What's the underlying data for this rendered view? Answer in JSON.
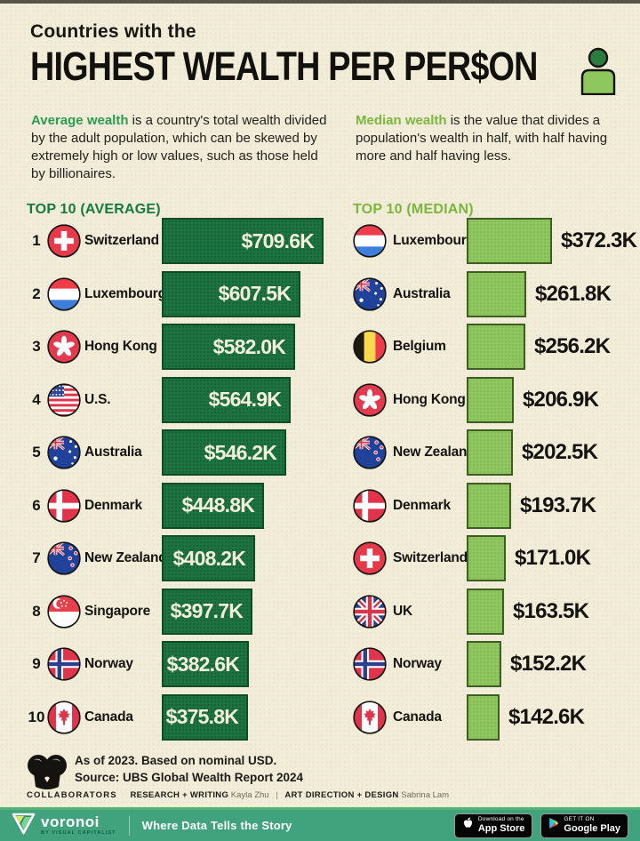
{
  "page": {
    "title_line1": "Countries with the",
    "title_line2": "HIGHEST WEALTH PER PER$ON"
  },
  "intro": {
    "average": {
      "highlight": "Average wealth",
      "text": " is a country's total wealth divided by the adult population, which can be skewed by extremely high or low values, such as those held by billionaires."
    },
    "median": {
      "highlight": "Median wealth",
      "text": " is the value that divides a population's wealth in half, with half having more and half having less."
    }
  },
  "chart_data": [
    {
      "type": "bar",
      "orientation": "horizontal",
      "title": "TOP 10 (AVERAGE)",
      "unit": "USD thousands per adult, nominal, 2023",
      "value_position": "inside",
      "bar_color": "#1d7340",
      "categories": [
        "Switzerland",
        "Luxembourg",
        "Hong Kong",
        "U.S.",
        "Australia",
        "Denmark",
        "New Zealand",
        "Singapore",
        "Norway",
        "Canada"
      ],
      "ranks": [
        1,
        2,
        3,
        4,
        5,
        6,
        7,
        8,
        9,
        10
      ],
      "values": [
        709.6,
        607.5,
        582.0,
        564.9,
        546.2,
        448.8,
        408.2,
        397.7,
        382.6,
        375.8
      ],
      "labels": [
        "$709.6K",
        "$607.5K",
        "$582.0K",
        "$564.9K",
        "$546.2K",
        "$448.8K",
        "$408.2K",
        "$397.7K",
        "$382.6K",
        "$375.8K"
      ],
      "flags": [
        "ch",
        "lu",
        "hk",
        "us",
        "au",
        "dk",
        "nz",
        "sg",
        "no",
        "ca"
      ],
      "xlim": [
        0,
        760
      ]
    },
    {
      "type": "bar",
      "orientation": "horizontal",
      "title": "TOP 10 (MEDIAN)",
      "unit": "USD thousands per adult, nominal, 2023",
      "value_position": "outside",
      "bar_color": "#8fc75f",
      "categories": [
        "Luxembourg",
        "Australia",
        "Belgium",
        "Hong Kong",
        "New Zealand",
        "Denmark",
        "Switzerland",
        "UK",
        "Norway",
        "Canada"
      ],
      "values": [
        372.3,
        261.8,
        256.2,
        206.9,
        202.5,
        193.7,
        171.0,
        163.5,
        152.2,
        142.6
      ],
      "labels": [
        "$372.3K",
        "$261.8K",
        "$256.2K",
        "$206.9K",
        "$202.5K",
        "$193.7K",
        "$171.0K",
        "$163.5K",
        "$152.2K",
        "$142.6K"
      ],
      "flags": [
        "lu",
        "au",
        "be",
        "hk",
        "nz",
        "dk",
        "ch",
        "uk",
        "no",
        "ca"
      ],
      "xlim": [
        0,
        760
      ]
    }
  ],
  "footer": {
    "note_line1": "As of 2023. Based on nominal USD.",
    "note_line2": "Source: UBS Global Wealth Report 2024",
    "collaborators_label": "COLLABORATORS",
    "role1": "RESEARCH + WRITING",
    "name1": "Kayla Zhu",
    "separator": "|",
    "role2": "ART DIRECTION + DESIGN",
    "name2": "Sabrina Lam"
  },
  "bottombar": {
    "brand": "voronoi",
    "brand_sub": "BY VISUAL CAPITALIST",
    "tagline": "Where Data Tells the Story",
    "app_store": {
      "line1": "Download on the",
      "line2": "App Store"
    },
    "google_play": {
      "line1": "GET IT ON",
      "line2": "Google Play"
    }
  },
  "colors": {
    "background": "#f2edd9",
    "average_green": "#1d7340",
    "median_green": "#8fc75f",
    "highlight_avg": "#2c9a51",
    "highlight_med": "#7cb63e",
    "bottombar_teal": "#41a37d"
  }
}
